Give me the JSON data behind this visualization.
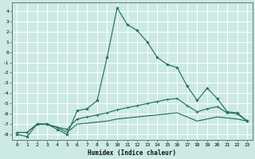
{
  "xlabel": "Humidex (Indice chaleur)",
  "xlim": [
    -0.5,
    23.5
  ],
  "ylim": [
    -8.5,
    4.8
  ],
  "yticks": [
    4,
    3,
    2,
    1,
    0,
    -1,
    -2,
    -3,
    -4,
    -5,
    -6,
    -7,
    -8
  ],
  "xticks": [
    0,
    1,
    2,
    3,
    4,
    5,
    6,
    7,
    8,
    9,
    10,
    11,
    12,
    13,
    14,
    15,
    16,
    17,
    18,
    19,
    20,
    21,
    22,
    23
  ],
  "bg_color": "#cce9e5",
  "grid_color": "#ffffff",
  "line_color": "#1a6b5a",
  "line1_x": [
    0,
    1,
    2,
    3,
    4,
    5,
    6,
    7,
    8,
    9,
    10,
    11,
    12,
    13,
    14,
    15,
    16,
    17,
    18,
    19,
    20,
    21,
    22,
    23
  ],
  "line1_y": [
    -8.0,
    -8.2,
    -7.0,
    -7.0,
    -7.5,
    -8.0,
    -5.7,
    -5.5,
    -4.7,
    -0.5,
    4.3,
    2.7,
    2.1,
    1.0,
    -0.5,
    -1.2,
    -1.5,
    -3.3,
    -4.7,
    -3.5,
    -4.5,
    -5.8,
    -5.9,
    -6.7
  ],
  "line2_x": [
    0,
    1,
    2,
    3,
    4,
    5,
    6,
    7,
    8,
    9,
    10,
    11,
    12,
    13,
    14,
    15,
    16,
    17,
    18,
    19,
    20,
    21,
    22,
    23
  ],
  "line2_y": [
    -7.8,
    -7.8,
    -7.0,
    -7.0,
    -7.3,
    -7.5,
    -6.5,
    -6.3,
    -6.1,
    -5.9,
    -5.6,
    -5.4,
    -5.2,
    -5.0,
    -4.8,
    -4.6,
    -4.5,
    -5.2,
    -5.8,
    -5.5,
    -5.3,
    -5.9,
    -6.0,
    -6.7
  ],
  "line3_x": [
    0,
    1,
    2,
    3,
    4,
    5,
    6,
    7,
    8,
    9,
    10,
    11,
    12,
    13,
    14,
    15,
    16,
    17,
    18,
    19,
    20,
    21,
    22,
    23
  ],
  "line3_y": [
    -7.8,
    -7.8,
    -7.0,
    -7.0,
    -7.3,
    -7.8,
    -7.0,
    -6.9,
    -6.8,
    -6.7,
    -6.5,
    -6.4,
    -6.3,
    -6.2,
    -6.1,
    -6.0,
    -5.9,
    -6.3,
    -6.7,
    -6.5,
    -6.3,
    -6.4,
    -6.5,
    -6.7
  ]
}
